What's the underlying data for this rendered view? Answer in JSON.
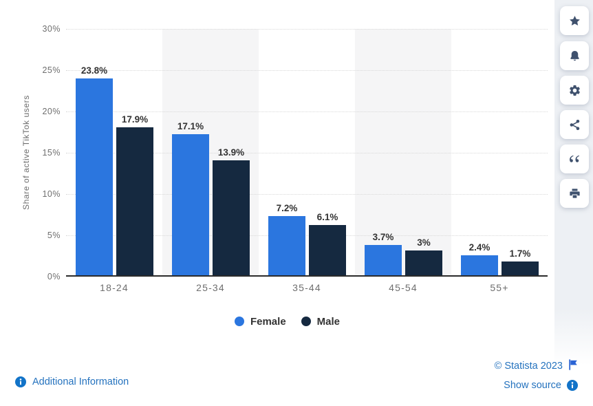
{
  "chart_data": {
    "type": "bar",
    "title": "",
    "categories": [
      "18-24",
      "25-34",
      "35-44",
      "45-54",
      "55+"
    ],
    "series": [
      {
        "name": "Female",
        "color": "#2B76DF",
        "values": [
          23.8,
          17.1,
          7.2,
          3.7,
          2.4
        ],
        "labels": [
          "23.8%",
          "17.1%",
          "7.2%",
          "3.7%",
          "2.4%"
        ]
      },
      {
        "name": "Male",
        "color": "#152940",
        "values": [
          17.9,
          13.9,
          6.1,
          3.0,
          1.7
        ],
        "labels": [
          "17.9%",
          "13.9%",
          "6.1%",
          "3%",
          "1.7%"
        ]
      }
    ],
    "xlabel": "",
    "ylabel": "Share of active TikTok users",
    "ylim": [
      0,
      30
    ],
    "yticks": [
      "30%",
      "25%",
      "20%",
      "15%",
      "10%",
      "5%",
      "0%"
    ],
    "grid": "horizontal-dotted",
    "band_columns": [
      1,
      3
    ],
    "band_color": "#f5f5f6",
    "legend_position": "bottom"
  },
  "toolbar": {
    "buttons": [
      {
        "icon": "star-icon"
      },
      {
        "icon": "bell-icon"
      },
      {
        "icon": "gear-icon"
      },
      {
        "icon": "share-icon"
      },
      {
        "icon": "quote-icon"
      },
      {
        "icon": "print-icon"
      }
    ]
  },
  "footer": {
    "additional_information": "Additional Information",
    "copyright": "© Statista 2023",
    "show_source": "Show source"
  },
  "colors": {
    "link_blue": "#2472BE",
    "info_icon_blue": "#1273C8",
    "flag_blue": "#2A63D4",
    "toolbar_icon": "#3F516D",
    "axis_line": "#2B2B2B",
    "gridline": "#D8D8D8",
    "tick_text": "#6E6E6E",
    "value_label_text": "#333333"
  }
}
